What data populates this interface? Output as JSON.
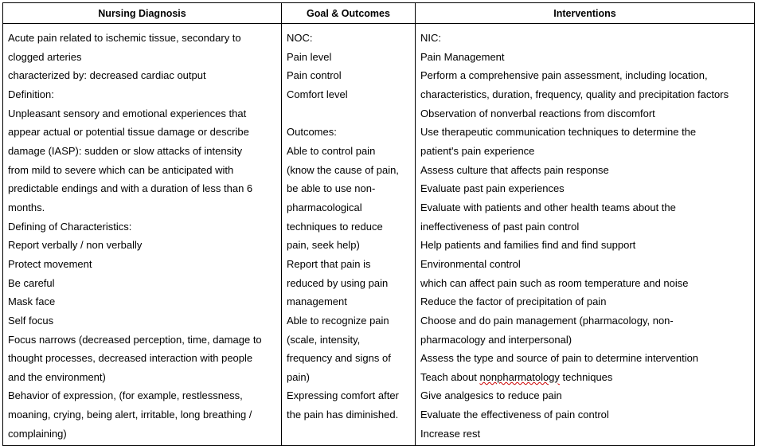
{
  "headers": [
    "Nursing Diagnosis",
    "Goal & Outcomes",
    "Interventions"
  ],
  "diagnosis": [
    "Acute pain related to ischemic tissue, secondary to",
    "clogged arteries",
    "characterized by: decreased cardiac output",
    "Definition:",
    "Unpleasant sensory and emotional experiences that",
    "appear actual or potential tissue damage or describe",
    "damage (IASP): sudden or slow attacks of intensity",
    "from mild to severe which can be anticipated with",
    "predictable endings and with a duration of less than 6",
    "months.",
    "Defining of Characteristics:",
    "Report verbally / non verbally",
    "Protect movement",
    "Be careful",
    "Mask face",
    "Self focus",
    "Focus narrows (decreased perception, time, damage to",
    "thought processes, decreased interaction with people",
    "and the environment)",
    "Behavior of expression, (for example, restlessness,",
    "moaning, crying, being alert, irritable, long breathing /",
    "complaining)"
  ],
  "goals": [
    "NOC:",
    "Pain level",
    "Pain control",
    "Comfort level",
    "",
    "Outcomes:",
    "Able to control pain",
    "(know the cause of pain,",
    "be able to use non-",
    "pharmacological",
    "techniques to reduce",
    "pain, seek help)",
    "Report that pain is",
    "reduced by using pain",
    "management",
    "Able to recognize pain",
    "(scale, intensity,",
    "frequency and signs of",
    "pain)",
    "Expressing comfort after",
    "the pain has diminished."
  ],
  "interventions": [
    "NIC:",
    "Pain Management",
    "Perform a comprehensive pain assessment, including location,",
    "characteristics, duration, frequency, quality and precipitation factors",
    "Observation of nonverbal reactions from discomfort",
    "Use therapeutic communication techniques to determine the",
    "patient's pain experience",
    "Assess culture that affects pain response",
    "Evaluate past pain experiences",
    "Evaluate with patients and other health teams about the",
    "ineffectiveness of past pain control",
    "Help patients and families find and find support",
    "Environmental control",
    "which can affect pain such as room temperature and noise",
    "Reduce the factor of precipitation of pain",
    "Choose and do pain management (pharmacology, non-",
    "pharmacology and interpersonal)",
    "Assess the type and source of pain to determine intervention",
    "Teach about nonpharmatology techniques",
    "Give analgesics to reduce pain",
    "Evaluate the effectiveness of pain control",
    "Increase rest"
  ]
}
